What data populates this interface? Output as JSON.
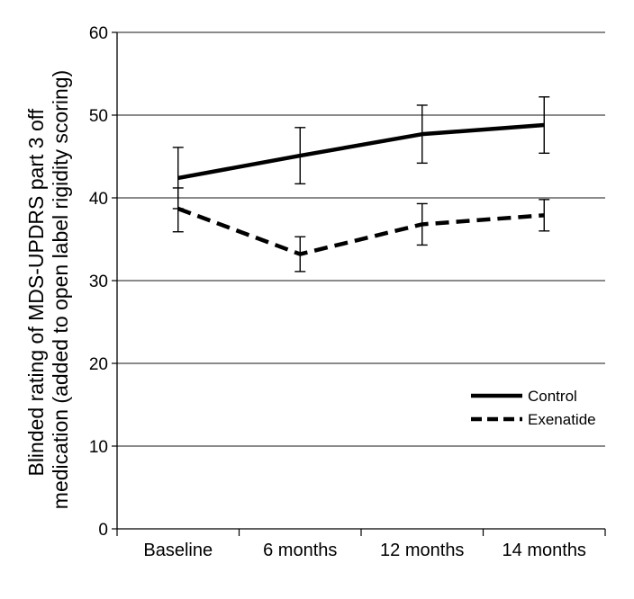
{
  "chart_data": {
    "type": "line",
    "title": "",
    "xlabel": "",
    "ylabel_lines": [
      "Blinded rating of MDS-UPDRS part 3 off",
      "medication (added to open label rigidity scoring)"
    ],
    "ylim": [
      0,
      60
    ],
    "yticks": [
      0,
      10,
      20,
      30,
      40,
      50,
      60
    ],
    "categories": [
      "Baseline",
      "6 months",
      "12 months",
      "14 months"
    ],
    "grid": "horizontal",
    "legend_position": "lower-right",
    "series": [
      {
        "name": "Control",
        "style": "solid",
        "color": "#000000",
        "values": [
          42.4,
          45.1,
          47.7,
          48.8
        ],
        "error_low": [
          38.7,
          41.7,
          44.2,
          45.4
        ],
        "error_high": [
          46.1,
          48.5,
          51.2,
          52.2
        ]
      },
      {
        "name": "Exenatide",
        "style": "dashed",
        "color": "#000000",
        "values": [
          38.7,
          33.2,
          36.8,
          37.9
        ],
        "error_low": [
          35.9,
          31.1,
          34.3,
          36.0
        ],
        "error_high": [
          41.2,
          35.3,
          39.3,
          39.8
        ]
      }
    ]
  }
}
